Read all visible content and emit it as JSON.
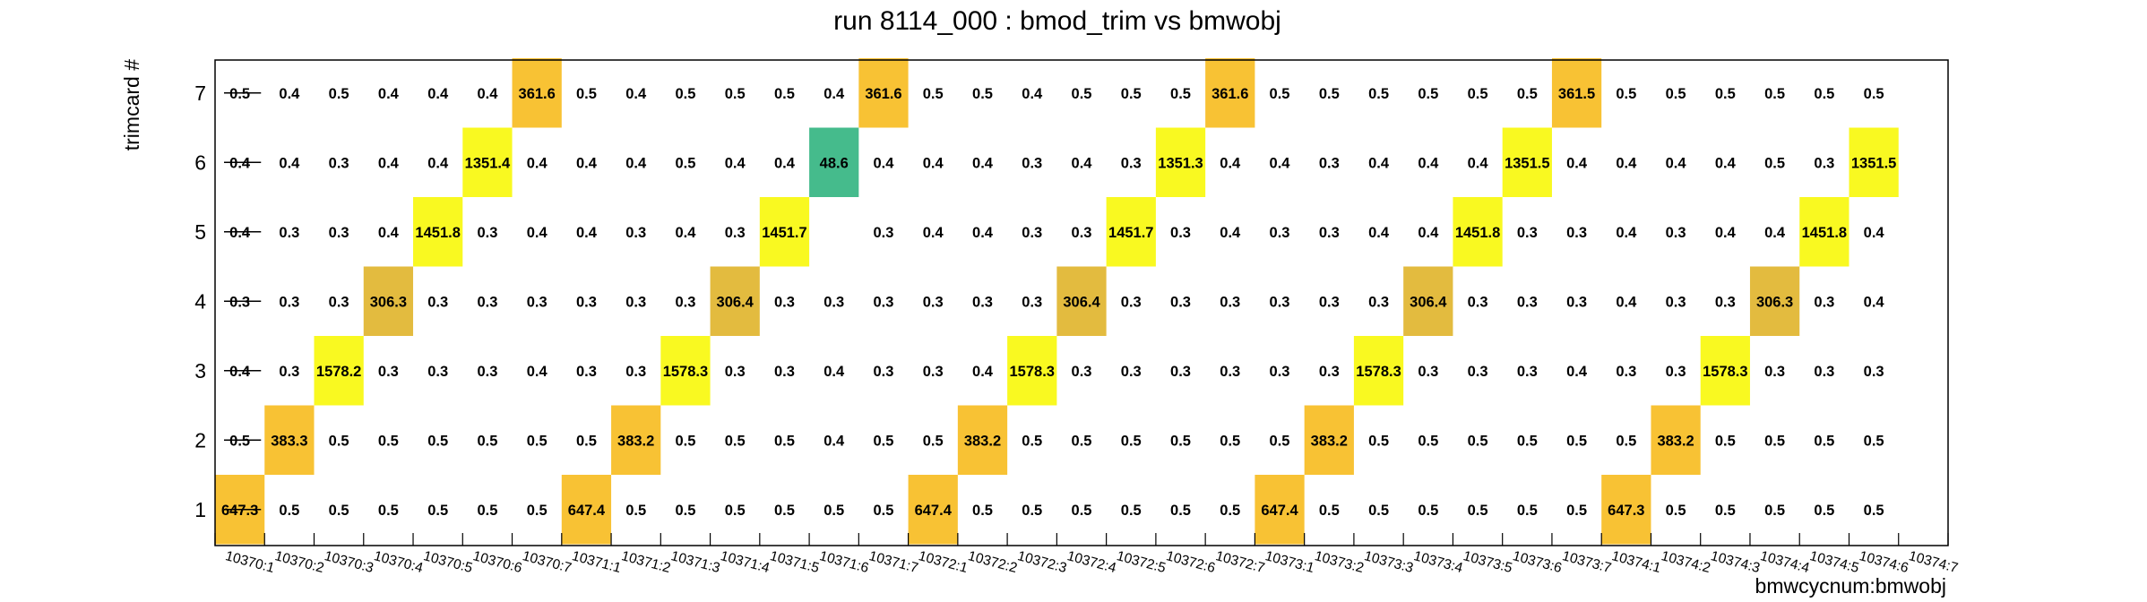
{
  "chart_data": {
    "type": "heatmap",
    "title": "run 8114_000 : bmod_trim vs bmwobj",
    "xlabel": "bmwcycnum:bmwobj",
    "ylabel": "trimcard #",
    "x_categories": [
      "10370:1",
      "10370:2",
      "10370:3",
      "10370:4",
      "10370:5",
      "10370:6",
      "10370:7",
      "10371:1",
      "10371:2",
      "10371:3",
      "10371:4",
      "10371:5",
      "10371:6",
      "10371:7",
      "10372:1",
      "10372:2",
      "10372:3",
      "10372:4",
      "10372:5",
      "10372:6",
      "10372:7",
      "10373:1",
      "10373:2",
      "10373:3",
      "10373:4",
      "10373:5",
      "10373:6",
      "10373:7",
      "10374:1",
      "10374:2",
      "10374:3",
      "10374:4",
      "10374:5",
      "10374:6",
      "10374:7"
    ],
    "y_categories": [
      "1",
      "2",
      "3",
      "4",
      "5",
      "6",
      "7"
    ],
    "colors": {
      "yellow": "#f9f921",
      "orange": "#f8c234",
      "gold": "#e3bb3f",
      "green": "#45bb8c"
    },
    "values": [
      [
        "647.3",
        "0.5",
        "0.5",
        "0.5",
        "0.5",
        "0.5",
        "0.5",
        "647.4",
        "0.5",
        "0.5",
        "0.5",
        "0.5",
        "0.5",
        "0.5",
        "647.4",
        "0.5",
        "0.5",
        "0.5",
        "0.5",
        "0.5",
        "0.5",
        "647.4",
        "0.5",
        "0.5",
        "0.5",
        "0.5",
        "0.5",
        "0.5",
        "647.3",
        "0.5",
        "0.5",
        "0.5",
        "0.5",
        "0.5",
        ""
      ],
      [
        "0.5",
        "383.3",
        "0.5",
        "0.5",
        "0.5",
        "0.5",
        "0.5",
        "0.5",
        "383.2",
        "0.5",
        "0.5",
        "0.5",
        "0.4",
        "0.5",
        "0.5",
        "383.2",
        "0.5",
        "0.5",
        "0.5",
        "0.5",
        "0.5",
        "0.5",
        "383.2",
        "0.5",
        "0.5",
        "0.5",
        "0.5",
        "0.5",
        "0.5",
        "383.2",
        "0.5",
        "0.5",
        "0.5",
        "0.5",
        ""
      ],
      [
        "0.4",
        "0.3",
        "1578.2",
        "0.3",
        "0.3",
        "0.3",
        "0.4",
        "0.3",
        "0.3",
        "1578.3",
        "0.3",
        "0.3",
        "0.4",
        "0.3",
        "0.3",
        "0.4",
        "1578.3",
        "0.3",
        "0.3",
        "0.3",
        "0.3",
        "0.3",
        "0.3",
        "1578.3",
        "0.3",
        "0.3",
        "0.3",
        "0.4",
        "0.3",
        "0.3",
        "1578.3",
        "0.3",
        "0.3",
        "0.3",
        ""
      ],
      [
        "0.3",
        "0.3",
        "0.3",
        "306.3",
        "0.3",
        "0.3",
        "0.3",
        "0.3",
        "0.3",
        "0.3",
        "306.4",
        "0.3",
        "0.3",
        "0.3",
        "0.3",
        "0.3",
        "0.3",
        "306.4",
        "0.3",
        "0.3",
        "0.3",
        "0.3",
        "0.3",
        "0.3",
        "306.4",
        "0.3",
        "0.3",
        "0.3",
        "0.4",
        "0.3",
        "0.3",
        "306.3",
        "0.3",
        "0.4",
        ""
      ],
      [
        "0.4",
        "0.3",
        "0.3",
        "0.4",
        "1451.8",
        "0.3",
        "0.4",
        "0.4",
        "0.3",
        "0.4",
        "0.3",
        "1451.7",
        "",
        "0.3",
        "0.4",
        "0.4",
        "0.3",
        "0.3",
        "1451.7",
        "0.3",
        "0.4",
        "0.3",
        "0.3",
        "0.4",
        "0.4",
        "1451.8",
        "0.3",
        "0.3",
        "0.4",
        "0.3",
        "0.4",
        "0.4",
        "1451.8",
        "0.4",
        ""
      ],
      [
        "0.4",
        "0.4",
        "0.3",
        "0.4",
        "0.4",
        "1351.4",
        "0.4",
        "0.4",
        "0.4",
        "0.5",
        "0.4",
        "0.4",
        "48.6",
        "0.4",
        "0.4",
        "0.4",
        "0.3",
        "0.4",
        "0.3",
        "1351.3",
        "0.4",
        "0.4",
        "0.3",
        "0.4",
        "0.4",
        "0.4",
        "1351.5",
        "0.4",
        "0.4",
        "0.4",
        "0.4",
        "0.5",
        "0.3",
        "1351.5",
        ""
      ],
      [
        "0.5",
        "0.4",
        "0.5",
        "0.4",
        "0.4",
        "0.4",
        "361.6",
        "0.5",
        "0.4",
        "0.5",
        "0.5",
        "0.5",
        "0.4",
        "361.6",
        "0.5",
        "0.5",
        "0.4",
        "0.5",
        "0.5",
        "0.5",
        "361.6",
        "0.5",
        "0.5",
        "0.5",
        "0.5",
        "0.5",
        "0.5",
        "361.5",
        "0.5",
        "0.5",
        "0.5",
        "0.5",
        "0.5",
        "0.5",
        ""
      ]
    ]
  }
}
